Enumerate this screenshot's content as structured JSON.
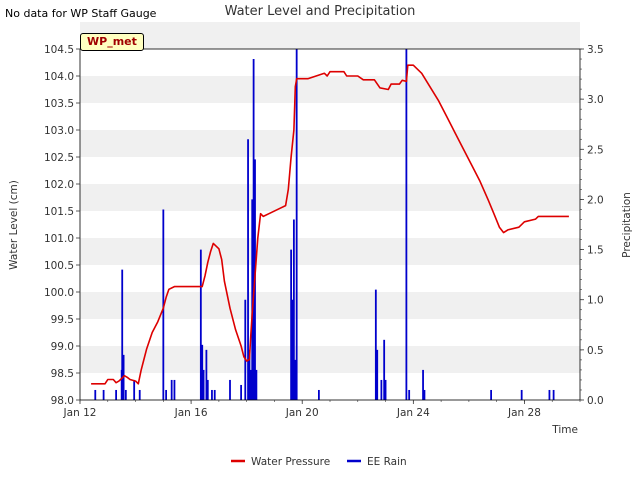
{
  "chart_data": {
    "type": "line",
    "title": "Water Level and Precipitation",
    "note": "No data for WP Staff Gauge",
    "site_tag": "WP_met",
    "xlabel": "Time",
    "ylabel_left": "Water Level (cm)",
    "ylabel_right": "Precipitation",
    "x_range_days": [
      0,
      18
    ],
    "x_ticks": [
      {
        "day": 0,
        "label": "Jan 12"
      },
      {
        "day": 4,
        "label": "Jan 16"
      },
      {
        "day": 8,
        "label": "Jan 20"
      },
      {
        "day": 12,
        "label": "Jan 24"
      },
      {
        "day": 16,
        "label": "Jan 28"
      }
    ],
    "ylim_left": [
      98.0,
      104.5
    ],
    "yticks_left": [
      "98.0",
      "98.5",
      "99.0",
      "99.5",
      "100.0",
      "100.5",
      "101.0",
      "101.5",
      "102.0",
      "102.5",
      "103.0",
      "103.5",
      "104.0",
      "104.5"
    ],
    "ylim_right": [
      0.0,
      3.5
    ],
    "yticks_right": [
      "0.0",
      "0.5",
      "1.0",
      "1.5",
      "2.0",
      "2.5",
      "3.0",
      "3.5"
    ],
    "grid": "horizontal bands",
    "legend_position": "bottom-center",
    "series": [
      {
        "name": "Water Pressure",
        "color": "#dd0000",
        "axis": "left",
        "points": [
          [
            0.4,
            98.3
          ],
          [
            0.9,
            98.3
          ],
          [
            1.0,
            98.38
          ],
          [
            1.2,
            98.38
          ],
          [
            1.3,
            98.32
          ],
          [
            1.4,
            98.35
          ],
          [
            1.5,
            98.4
          ],
          [
            1.6,
            98.45
          ],
          [
            1.7,
            98.42
          ],
          [
            1.8,
            98.38
          ],
          [
            2.0,
            98.35
          ],
          [
            2.1,
            98.3
          ],
          [
            2.2,
            98.55
          ],
          [
            2.3,
            98.75
          ],
          [
            2.4,
            98.95
          ],
          [
            2.6,
            99.25
          ],
          [
            2.8,
            99.45
          ],
          [
            3.0,
            99.7
          ],
          [
            3.1,
            99.9
          ],
          [
            3.2,
            100.05
          ],
          [
            3.4,
            100.1
          ],
          [
            3.8,
            100.1
          ],
          [
            4.2,
            100.1
          ],
          [
            4.4,
            100.1
          ],
          [
            4.5,
            100.3
          ],
          [
            4.6,
            100.55
          ],
          [
            4.7,
            100.75
          ],
          [
            4.8,
            100.9
          ],
          [
            5.0,
            100.8
          ],
          [
            5.1,
            100.6
          ],
          [
            5.2,
            100.2
          ],
          [
            5.4,
            99.7
          ],
          [
            5.6,
            99.3
          ],
          [
            5.8,
            99.0
          ],
          [
            5.9,
            98.8
          ],
          [
            6.0,
            98.72
          ],
          [
            6.1,
            98.75
          ],
          [
            6.15,
            99.2
          ],
          [
            6.2,
            99.6
          ],
          [
            6.3,
            100.3
          ],
          [
            6.4,
            101.0
          ],
          [
            6.5,
            101.45
          ],
          [
            6.6,
            101.4
          ],
          [
            6.8,
            101.45
          ],
          [
            7.2,
            101.55
          ],
          [
            7.4,
            101.6
          ],
          [
            7.5,
            101.9
          ],
          [
            7.6,
            102.5
          ],
          [
            7.7,
            103.0
          ],
          [
            7.75,
            103.8
          ],
          [
            7.8,
            103.95
          ],
          [
            8.2,
            103.95
          ],
          [
            8.5,
            104.0
          ],
          [
            8.8,
            104.05
          ],
          [
            8.9,
            104.0
          ],
          [
            9.0,
            104.08
          ],
          [
            9.5,
            104.08
          ],
          [
            9.6,
            104.0
          ],
          [
            10.0,
            104.0
          ],
          [
            10.2,
            103.93
          ],
          [
            10.6,
            103.93
          ],
          [
            10.8,
            103.78
          ],
          [
            11.1,
            103.75
          ],
          [
            11.2,
            103.85
          ],
          [
            11.5,
            103.85
          ],
          [
            11.6,
            103.92
          ],
          [
            11.75,
            103.9
          ],
          [
            11.8,
            104.2
          ],
          [
            12.0,
            104.2
          ],
          [
            12.3,
            104.05
          ],
          [
            12.6,
            103.8
          ],
          [
            12.9,
            103.55
          ],
          [
            13.2,
            103.25
          ],
          [
            13.5,
            102.95
          ],
          [
            13.8,
            102.65
          ],
          [
            14.1,
            102.35
          ],
          [
            14.4,
            102.05
          ],
          [
            14.7,
            101.7
          ],
          [
            14.9,
            101.45
          ],
          [
            15.1,
            101.2
          ],
          [
            15.25,
            101.1
          ],
          [
            15.4,
            101.15
          ],
          [
            15.8,
            101.2
          ],
          [
            16.0,
            101.3
          ],
          [
            16.4,
            101.35
          ],
          [
            16.5,
            101.4
          ],
          [
            17.0,
            101.4
          ],
          [
            17.3,
            101.4
          ],
          [
            17.6,
            101.4
          ]
        ]
      },
      {
        "name": "EE Rain",
        "color": "#0000cc",
        "axis": "right",
        "bars": [
          [
            0.55,
            0.1
          ],
          [
            0.85,
            0.1
          ],
          [
            1.3,
            0.1
          ],
          [
            1.5,
            0.3
          ],
          [
            1.52,
            1.3
          ],
          [
            1.57,
            0.45
          ],
          [
            1.65,
            0.1
          ],
          [
            1.95,
            0.2
          ],
          [
            2.15,
            0.1
          ],
          [
            3.0,
            1.9
          ],
          [
            3.1,
            0.1
          ],
          [
            3.3,
            0.2
          ],
          [
            3.4,
            0.2
          ],
          [
            4.35,
            1.5
          ],
          [
            4.4,
            0.55
          ],
          [
            4.45,
            0.3
          ],
          [
            4.55,
            0.5
          ],
          [
            4.6,
            0.2
          ],
          [
            4.75,
            0.1
          ],
          [
            4.85,
            0.1
          ],
          [
            5.4,
            0.2
          ],
          [
            5.8,
            0.15
          ],
          [
            5.95,
            1.0
          ],
          [
            6.05,
            2.6
          ],
          [
            6.1,
            0.5
          ],
          [
            6.15,
            0.3
          ],
          [
            6.2,
            2.0
          ],
          [
            6.25,
            3.4
          ],
          [
            6.3,
            2.4
          ],
          [
            6.35,
            0.3
          ],
          [
            7.6,
            1.5
          ],
          [
            7.65,
            1.0
          ],
          [
            7.7,
            1.8
          ],
          [
            7.75,
            0.4
          ],
          [
            7.8,
            3.5
          ],
          [
            8.6,
            0.1
          ],
          [
            10.65,
            1.1
          ],
          [
            10.7,
            0.5
          ],
          [
            10.85,
            0.2
          ],
          [
            10.95,
            0.6
          ],
          [
            11.0,
            0.2
          ],
          [
            11.75,
            3.5
          ],
          [
            11.85,
            0.1
          ],
          [
            12.35,
            0.3
          ],
          [
            12.4,
            0.1
          ],
          [
            14.8,
            0.1
          ],
          [
            15.9,
            0.1
          ],
          [
            16.9,
            0.1
          ],
          [
            17.05,
            0.1
          ]
        ]
      }
    ]
  }
}
